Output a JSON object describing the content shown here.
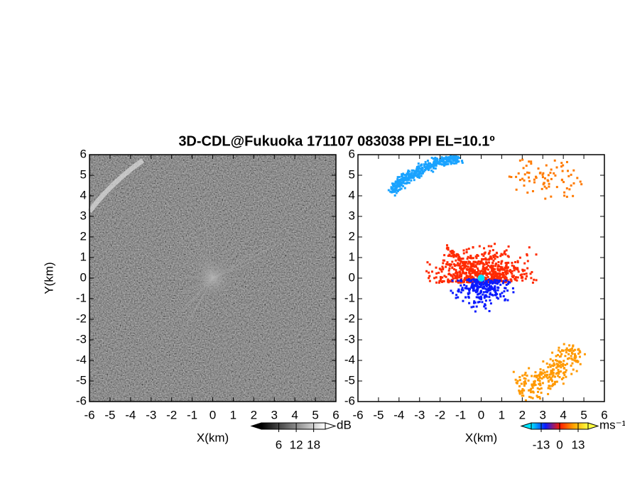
{
  "title": "3D-CDL@Fukuoka 171107 083038 PPI EL=10.1º",
  "chart_data": [
    {
      "type": "image",
      "xlabel": "X(km)",
      "ylabel": "Y(km)",
      "xlim": [
        -6,
        6
      ],
      "ylim": [
        -6,
        6
      ],
      "xticks": [
        -6,
        -5,
        -4,
        -3,
        -2,
        -1,
        0,
        1,
        2,
        3,
        4,
        5,
        6
      ],
      "yticks": [
        -6,
        -5,
        -4,
        -3,
        -2,
        -1,
        0,
        1,
        2,
        3,
        4,
        5,
        6
      ],
      "colorbar": {
        "label": "dB",
        "lim": [
          0,
          22
        ],
        "ticks": [
          6,
          12,
          18
        ],
        "colors": [
          "#000000",
          "#ffffff"
        ]
      }
    },
    {
      "type": "scatter",
      "xlabel": "X(km)",
      "xlim": [
        -6,
        6
      ],
      "ylim": [
        -6,
        6
      ],
      "xticks": [
        -6,
        -5,
        -4,
        -3,
        -2,
        -1,
        0,
        1,
        2,
        3,
        4,
        5,
        6
      ],
      "yticks": [
        -6,
        -5,
        -4,
        -3,
        -2,
        -1,
        0,
        1,
        2,
        3,
        4,
        5,
        6
      ],
      "colorbar": {
        "label": "ms⁻¹",
        "lim": [
          -20,
          20
        ],
        "ticks": [
          -13,
          0,
          13
        ],
        "colors": [
          "#00e5ff",
          "#0a1aff",
          "#ff1a00",
          "#ffa500",
          "#ffff40"
        ]
      }
    }
  ]
}
